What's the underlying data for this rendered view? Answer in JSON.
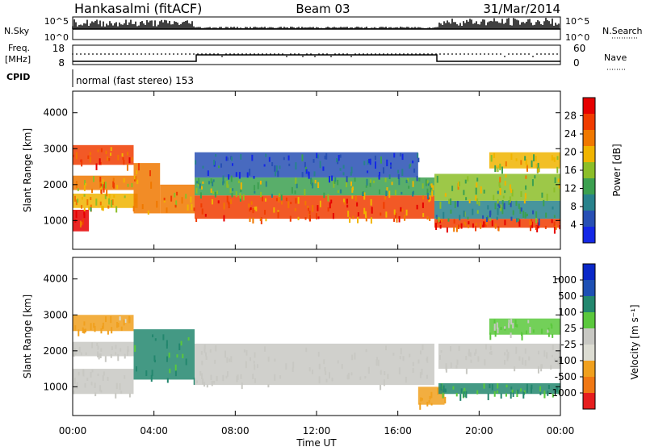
{
  "header": {
    "station": "Hankasalmi (fitACF)",
    "beam": "Beam 03",
    "date": "31/Mar/2014"
  },
  "strip_labels": {
    "nsky": "N.Sky",
    "nsky_ticks": [
      "10^5",
      "10^0"
    ],
    "nsearch": "N.Search",
    "nsearch_ticks": [
      "10^5",
      "10^0"
    ],
    "freq": "Freq.",
    "freq_unit": "[MHz]",
    "freq_ticks": [
      "18",
      "8"
    ],
    "nave": "Nave",
    "nave_ticks": [
      "60",
      "0"
    ],
    "cpid": "CPID",
    "cpid_text": "normal (fast stereo) 153"
  },
  "colors": {
    "power_scale": [
      "#1428e6",
      "#2850b4",
      "#28828c",
      "#3ca050",
      "#8cbe28",
      "#f0b400",
      "#f07800",
      "#f03c00",
      "#e60000"
    ],
    "velocity_scale": [
      "#0a28c8",
      "#1e50b4",
      "#23876e",
      "#5ac83c",
      "#c8c8c3",
      "#dcdcd2",
      "#f0a01e",
      "#f07814",
      "#e61e1e"
    ]
  },
  "chart_data": [
    {
      "type": "heatmap",
      "name": "power",
      "ylabel": "Slant Range [km]",
      "xlim": [
        0,
        24
      ],
      "ylim": [
        200,
        4600
      ],
      "y_ticks": [
        "1000",
        "2000",
        "3000",
        "4000"
      ],
      "colorbar": {
        "label": "Power [dB]",
        "range": [
          0,
          32
        ],
        "ticks": [
          "4",
          "8",
          "12",
          "16",
          "20",
          "24",
          "28"
        ]
      },
      "bands": [
        {
          "x": [
            0.0,
            0.8
          ],
          "y": [
            700,
            1300
          ],
          "value": 29
        },
        {
          "x": [
            0.0,
            3.2
          ],
          "y": [
            1350,
            1750
          ],
          "value": 20
        },
        {
          "x": [
            0.0,
            3.0
          ],
          "y": [
            1850,
            2250
          ],
          "value": 22
        },
        {
          "x": [
            0.0,
            3.0
          ],
          "y": [
            2550,
            3100
          ],
          "value": 26
        },
        {
          "x": [
            3.0,
            4.3
          ],
          "y": [
            1200,
            2600
          ],
          "value": 24
        },
        {
          "x": [
            4.3,
            6.0
          ],
          "y": [
            1200,
            2000
          ],
          "value": 22
        },
        {
          "x": [
            6.0,
            17.8
          ],
          "y": [
            1050,
            1700
          ],
          "value": 25
        },
        {
          "x": [
            6.0,
            17.8
          ],
          "y": [
            1700,
            2200
          ],
          "value": 14
        },
        {
          "x": [
            6.0,
            17.0
          ],
          "y": [
            2200,
            2900
          ],
          "value": 6
        },
        {
          "x": [
            17.8,
            24.0
          ],
          "y": [
            800,
            1050
          ],
          "value": 28
        },
        {
          "x": [
            17.8,
            24.0
          ],
          "y": [
            1050,
            1550
          ],
          "value": 10
        },
        {
          "x": [
            17.8,
            24.0
          ],
          "y": [
            1550,
            2300
          ],
          "value": 16
        },
        {
          "x": [
            20.5,
            24.0
          ],
          "y": [
            2450,
            2900
          ],
          "value": 18
        }
      ]
    },
    {
      "type": "heatmap",
      "name": "velocity",
      "ylabel": "Slant Range [km]",
      "xlabel": "Time UT",
      "xlim": [
        0,
        24
      ],
      "ylim": [
        200,
        4600
      ],
      "y_ticks": [
        "1000",
        "2000",
        "3000",
        "4000"
      ],
      "x_ticks": [
        "00:00",
        "04:00",
        "08:00",
        "12:00",
        "16:00",
        "20:00",
        "00:00"
      ],
      "colorbar": {
        "label": "Velocity [m s⁻¹]",
        "ticks": [
          "1000",
          "500",
          "100",
          "25",
          "-25",
          "-100",
          "-500",
          "-1000"
        ]
      },
      "bands": [
        {
          "x": [
            0.0,
            3.0
          ],
          "y": [
            800,
            1500
          ],
          "value": 0
        },
        {
          "x": [
            0.0,
            3.0
          ],
          "y": [
            1850,
            2250
          ],
          "value": 0
        },
        {
          "x": [
            0.0,
            3.0
          ],
          "y": [
            2550,
            3000
          ],
          "value": -150
        },
        {
          "x": [
            3.0,
            6.0
          ],
          "y": [
            1200,
            2600
          ],
          "value": 150
        },
        {
          "x": [
            6.0,
            17.8
          ],
          "y": [
            1050,
            2200
          ],
          "value": 0
        },
        {
          "x": [
            17.0,
            18.3
          ],
          "y": [
            500,
            1000
          ],
          "value": -300
        },
        {
          "x": [
            18.0,
            24.0
          ],
          "y": [
            800,
            1100
          ],
          "value": 100
        },
        {
          "x": [
            18.0,
            24.0
          ],
          "y": [
            1500,
            2200
          ],
          "value": 0
        },
        {
          "x": [
            20.5,
            24.0
          ],
          "y": [
            2450,
            2900
          ],
          "value": 30
        }
      ]
    }
  ]
}
